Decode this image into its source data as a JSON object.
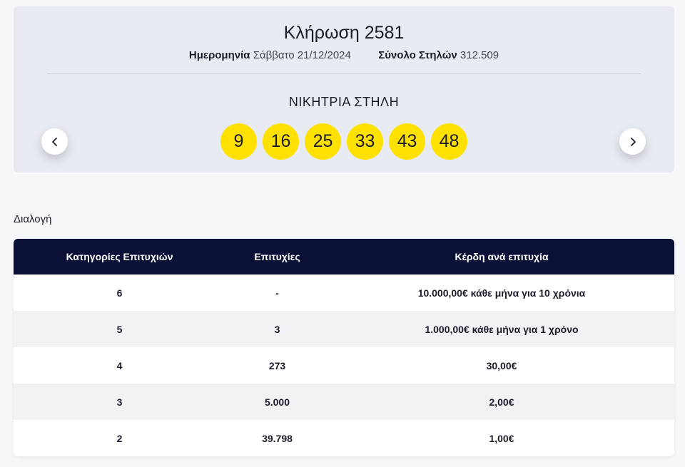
{
  "draw": {
    "title": "Κλήρωση 2581",
    "date_label": "Ημερομηνία",
    "date_value": "Σάββατο 21/12/2024",
    "columns_label": "Σύνολο Στηλών",
    "columns_value": "312.509",
    "winning_title": "ΝΙΚΗΤΡΙΑ ΣΤΗΛΗ",
    "numbers": [
      "9",
      "16",
      "25",
      "33",
      "43",
      "48"
    ],
    "ball_color": "#ffe100"
  },
  "nav": {
    "prev_icon": "chevron-left-icon",
    "next_icon": "chevron-right-icon"
  },
  "section": {
    "label": "Διαλογή"
  },
  "table": {
    "headers": [
      "Κατηγορίες Επιτυχιών",
      "Επιτυχίες",
      "Κέρδη ανά επιτυχία"
    ],
    "rows": [
      [
        "6",
        "-",
        "10.000,00€ κάθε μήνα για 10 χρόνια"
      ],
      [
        "5",
        "3",
        "1.000,00€ κάθε μήνα για 1 χρόνο"
      ],
      [
        "4",
        "273",
        "30,00€"
      ],
      [
        "3",
        "5.000",
        "2,00€"
      ],
      [
        "2",
        "39.798",
        "1,00€"
      ]
    ],
    "header_color": "#0b1136"
  }
}
